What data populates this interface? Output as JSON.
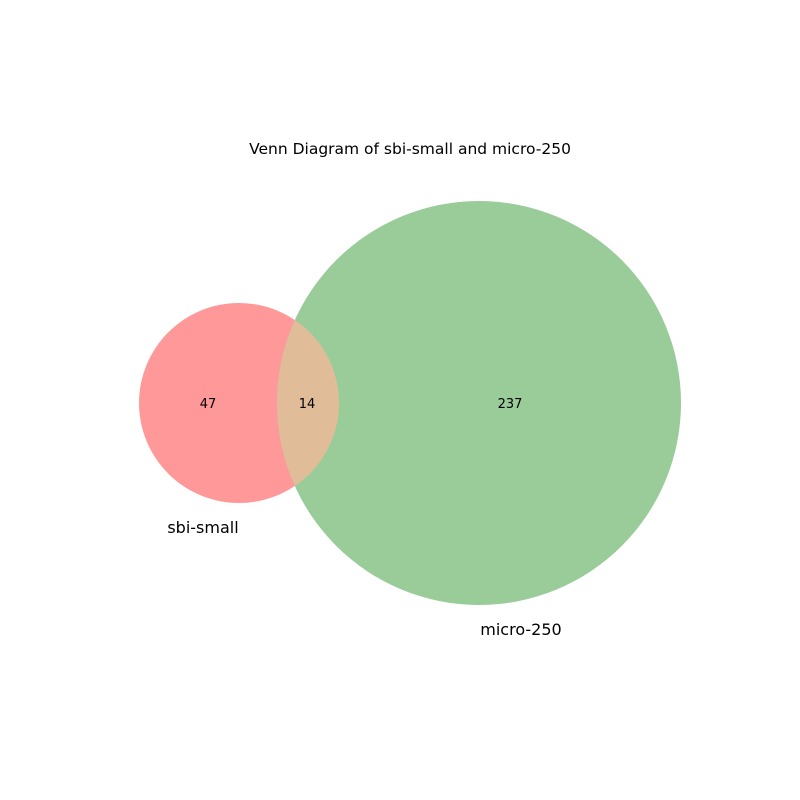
{
  "title": "Venn Diagram of sbi-small and micro-250",
  "sets": {
    "a": {
      "label": "sbi-small",
      "color": "#ff9999"
    },
    "b": {
      "label": "micro-250",
      "color": "#99cc99"
    },
    "overlap": {
      "color": "#e0bd98"
    }
  },
  "counts": {
    "a_only": "47",
    "overlap": "14",
    "b_only": "237"
  },
  "chart_data": {
    "type": "venn",
    "title": "Venn Diagram of sbi-small and micro-250",
    "sets": [
      "sbi-small",
      "micro-250"
    ],
    "regions": [
      {
        "sets": [
          "sbi-small"
        ],
        "value": 47
      },
      {
        "sets": [
          "sbi-small",
          "micro-250"
        ],
        "value": 14
      },
      {
        "sets": [
          "micro-250"
        ],
        "value": 237
      }
    ]
  }
}
